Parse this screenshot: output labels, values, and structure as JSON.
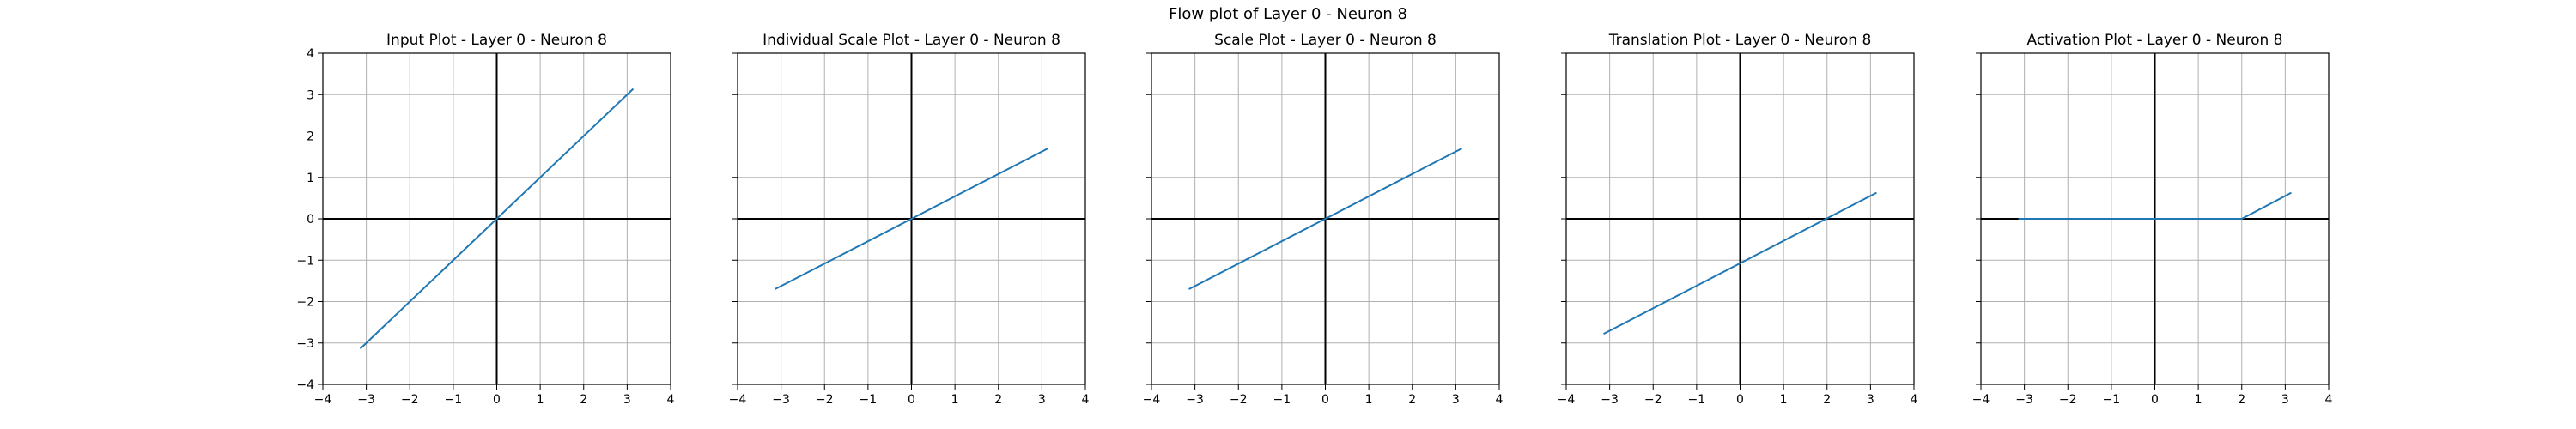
{
  "figure": {
    "title": "Flow plot of Layer 0 - Neuron 8"
  },
  "colors": {
    "line": "#1f77b4",
    "axis": "#000000",
    "grid": "#b0b0b0"
  },
  "chart_data": [
    {
      "type": "line",
      "title": "Input Plot - Layer 0 - Neuron 8",
      "xlim": [
        -4,
        4
      ],
      "ylim": [
        -4,
        4
      ],
      "xticks": [
        -4,
        -3,
        -2,
        -1,
        0,
        1,
        2,
        3,
        4
      ],
      "yticks": [
        -4,
        -3,
        -2,
        -1,
        0,
        1,
        2,
        3,
        4
      ],
      "grid": true,
      "series": [
        {
          "x": [
            -3.14,
            3.14
          ],
          "y": [
            -3.14,
            3.14
          ]
        }
      ]
    },
    {
      "type": "line",
      "title": "Individual Scale Plot - Layer 0 - Neuron 8",
      "xlim": [
        -4,
        4
      ],
      "ylim": [
        -4,
        4
      ],
      "xticks": [
        -4,
        -3,
        -2,
        -1,
        0,
        1,
        2,
        3,
        4
      ],
      "yticks": [
        -4,
        -3,
        -2,
        -1,
        0,
        1,
        2,
        3,
        4
      ],
      "grid": true,
      "series": [
        {
          "x": [
            -3.14,
            3.14
          ],
          "y": [
            -1.7,
            1.7
          ]
        }
      ]
    },
    {
      "type": "line",
      "title": "Scale Plot - Layer 0 - Neuron 8",
      "xlim": [
        -4,
        4
      ],
      "ylim": [
        -4,
        4
      ],
      "xticks": [
        -4,
        -3,
        -2,
        -1,
        0,
        1,
        2,
        3,
        4
      ],
      "yticks": [
        -4,
        -3,
        -2,
        -1,
        0,
        1,
        2,
        3,
        4
      ],
      "grid": true,
      "series": [
        {
          "x": [
            -3.14,
            3.14
          ],
          "y": [
            -1.7,
            1.7
          ]
        }
      ]
    },
    {
      "type": "line",
      "title": "Translation Plot - Layer 0 - Neuron 8",
      "xlim": [
        -4,
        4
      ],
      "ylim": [
        -4,
        4
      ],
      "xticks": [
        -4,
        -3,
        -2,
        -1,
        0,
        1,
        2,
        3,
        4
      ],
      "yticks": [
        -4,
        -3,
        -2,
        -1,
        0,
        1,
        2,
        3,
        4
      ],
      "grid": true,
      "series": [
        {
          "x": [
            -3.14,
            3.14
          ],
          "y": [
            -2.78,
            0.63
          ]
        }
      ]
    },
    {
      "type": "line",
      "title": "Activation Plot - Layer 0 - Neuron 8",
      "xlim": [
        -4,
        4
      ],
      "ylim": [
        -4,
        4
      ],
      "xticks": [
        -4,
        -3,
        -2,
        -1,
        0,
        1,
        2,
        3,
        4
      ],
      "yticks": [
        -4,
        -3,
        -2,
        -1,
        0,
        1,
        2,
        3,
        4
      ],
      "grid": true,
      "series": [
        {
          "x": [
            -3.14,
            2.0,
            3.14
          ],
          "y": [
            0.0,
            0.0,
            0.63
          ]
        }
      ]
    }
  ]
}
